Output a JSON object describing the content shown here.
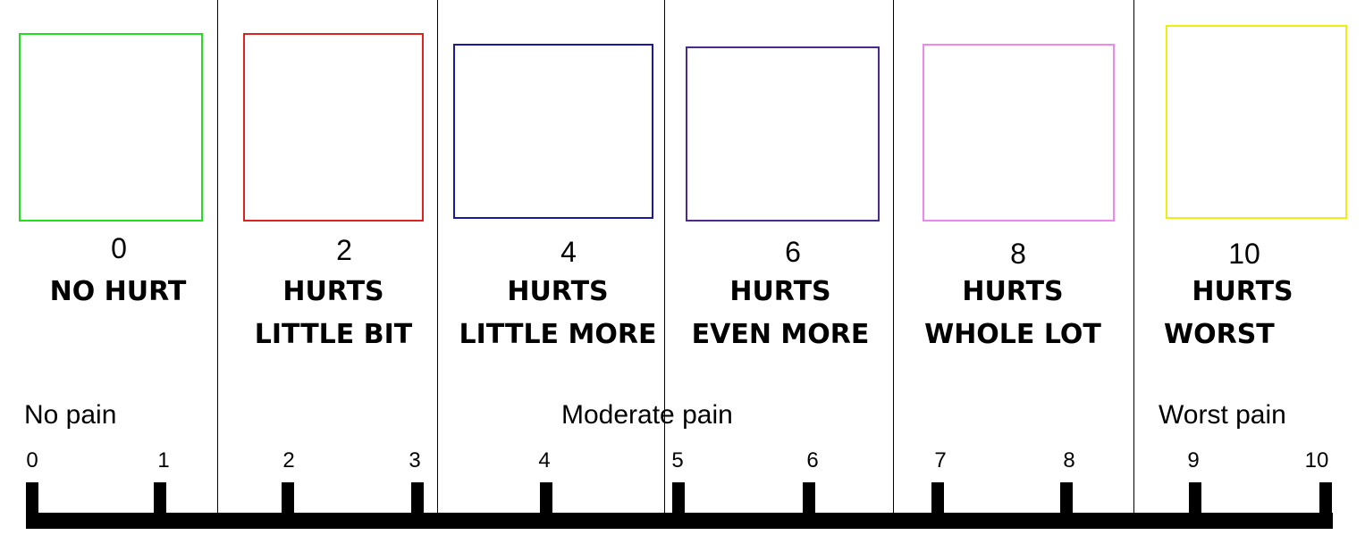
{
  "faces": [
    {
      "number": "0",
      "line1": "NO HURT",
      "line2": "",
      "color": "#22dd22"
    },
    {
      "number": "2",
      "line1": "HURTS",
      "line2": "LITTLE BIT",
      "color": "#dd2222"
    },
    {
      "number": "4",
      "line1": "HURTS",
      "line2": "LITTLE MORE",
      "color": "#1a1a9a"
    },
    {
      "number": "6",
      "line1": "HURTS",
      "line2": "EVEN MORE",
      "color": "#4a2a90"
    },
    {
      "number": "8",
      "line1": "HURTS",
      "line2": "WHOLE LOT",
      "color": "#ee88ee"
    },
    {
      "number": "10",
      "line1": "HURTS",
      "line2": "WORST",
      "color": "#eeee11"
    }
  ],
  "scale": {
    "region_labels": {
      "low": "No pain",
      "mid": "Moderate pain",
      "high": "Worst pain"
    },
    "ticks": [
      "0",
      "1",
      "2",
      "3",
      "4",
      "5",
      "6",
      "7",
      "8",
      "9",
      "10"
    ]
  }
}
